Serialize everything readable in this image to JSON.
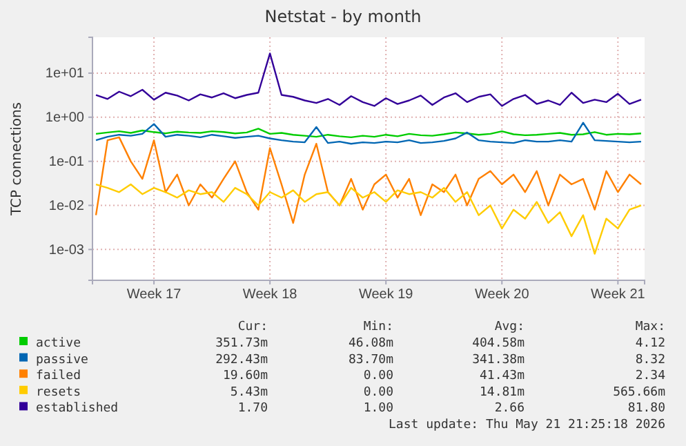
{
  "chart_data": {
    "type": "line",
    "title": "Netstat - by month",
    "ylabel": "TCP connections",
    "log": true,
    "grid": true,
    "legend": "bottom",
    "marker": "none",
    "line_style": "solid",
    "categories": [
      null,
      null,
      null,
      null,
      null,
      "Week 17",
      null,
      null,
      null,
      null,
      null,
      null,
      null,
      null,
      null,
      "Week 18",
      null,
      null,
      null,
      null,
      null,
      null,
      null,
      null,
      null,
      "Week 19",
      null,
      null,
      null,
      null,
      null,
      null,
      null,
      null,
      null,
      "Week 20",
      null,
      null,
      null,
      null,
      null,
      null,
      null,
      null,
      null,
      "Week 21",
      null,
      null
    ],
    "ylim": [
      0.0002,
      65
    ],
    "yticks": [
      {
        "value": 10,
        "label": "1e+01"
      },
      {
        "value": 1,
        "label": "1e+00"
      },
      {
        "value": 0.1,
        "label": "1e-01"
      },
      {
        "value": 0.01,
        "label": "1e-02"
      },
      {
        "value": 0.001,
        "label": "1e-03"
      }
    ],
    "series": [
      {
        "name": "active",
        "color": "#00cc00",
        "values": [
          0.42,
          0.45,
          0.48,
          0.44,
          0.5,
          0.46,
          0.43,
          0.47,
          0.45,
          0.44,
          0.48,
          0.46,
          0.43,
          0.45,
          0.55,
          0.42,
          0.44,
          0.4,
          0.38,
          0.36,
          0.4,
          0.37,
          0.35,
          0.38,
          0.36,
          0.4,
          0.37,
          0.42,
          0.39,
          0.38,
          0.41,
          0.45,
          0.43,
          0.4,
          0.42,
          0.48,
          0.41,
          0.39,
          0.4,
          0.42,
          0.44,
          0.4,
          0.41,
          0.46,
          0.4,
          0.42,
          0.41,
          0.43
        ]
      },
      {
        "name": "passive",
        "color": "#0066b3",
        "values": [
          0.3,
          0.36,
          0.4,
          0.38,
          0.42,
          0.7,
          0.36,
          0.4,
          0.38,
          0.35,
          0.4,
          0.37,
          0.34,
          0.36,
          0.38,
          0.33,
          0.3,
          0.28,
          0.27,
          0.6,
          0.26,
          0.28,
          0.25,
          0.27,
          0.26,
          0.28,
          0.27,
          0.3,
          0.26,
          0.27,
          0.29,
          0.33,
          0.45,
          0.3,
          0.28,
          0.27,
          0.26,
          0.3,
          0.28,
          0.28,
          0.3,
          0.28,
          0.75,
          0.3,
          0.29,
          0.28,
          0.27,
          0.28
        ]
      },
      {
        "name": "failed",
        "color": "#ff8000",
        "values": [
          0.006,
          0.3,
          0.35,
          0.1,
          0.04,
          0.3,
          0.02,
          0.05,
          0.01,
          0.03,
          0.015,
          0.04,
          0.1,
          0.02,
          0.008,
          0.2,
          0.03,
          0.004,
          0.05,
          0.25,
          0.02,
          0.01,
          0.04,
          0.008,
          0.03,
          0.05,
          0.015,
          0.04,
          0.006,
          0.03,
          0.02,
          0.05,
          0.01,
          0.04,
          0.06,
          0.03,
          0.05,
          0.02,
          0.06,
          0.01,
          0.05,
          0.03,
          0.04,
          0.008,
          0.06,
          0.02,
          0.05,
          0.03
        ]
      },
      {
        "name": "resets",
        "color": "#ffcc00",
        "values": [
          0.03,
          0.025,
          0.02,
          0.03,
          0.018,
          0.025,
          0.02,
          0.015,
          0.022,
          0.018,
          0.02,
          0.012,
          0.025,
          0.018,
          0.01,
          0.02,
          0.015,
          0.022,
          0.012,
          0.018,
          0.02,
          0.01,
          0.025,
          0.015,
          0.02,
          0.012,
          0.022,
          0.018,
          0.02,
          0.015,
          0.025,
          0.012,
          0.02,
          0.006,
          0.01,
          0.003,
          0.008,
          0.005,
          0.012,
          0.004,
          0.007,
          0.002,
          0.006,
          0.0008,
          0.005,
          0.003,
          0.008,
          0.01
        ]
      },
      {
        "name": "established",
        "color": "#330099",
        "values": [
          3.2,
          2.6,
          3.8,
          3.0,
          4.2,
          2.5,
          3.6,
          3.1,
          2.4,
          3.3,
          2.8,
          3.5,
          2.7,
          3.2,
          3.6,
          28,
          3.2,
          2.9,
          2.4,
          2.1,
          2.6,
          1.9,
          3.0,
          2.2,
          1.8,
          2.7,
          2.0,
          2.4,
          3.1,
          1.9,
          2.8,
          3.5,
          2.2,
          2.9,
          3.3,
          1.8,
          2.6,
          3.2,
          2.0,
          2.4,
          1.9,
          3.6,
          2.1,
          2.5,
          2.2,
          3.4,
          2.0,
          2.5
        ]
      }
    ],
    "annotations": [
      "Cur:",
      "Min:",
      "Avg:",
      "Max:",
      "351.73m",
      "46.08m",
      "404.58m",
      "4.12",
      "292.43m",
      "83.70m",
      "341.38m",
      "8.32",
      "19.60m",
      "0.00",
      "41.43m",
      "2.34",
      "5.43m",
      "0.00",
      "14.81m",
      "565.66m",
      "1.70",
      "1.00",
      "2.66",
      "81.80",
      "Last update: Thu May 21 21:25:18 2026"
    ]
  }
}
